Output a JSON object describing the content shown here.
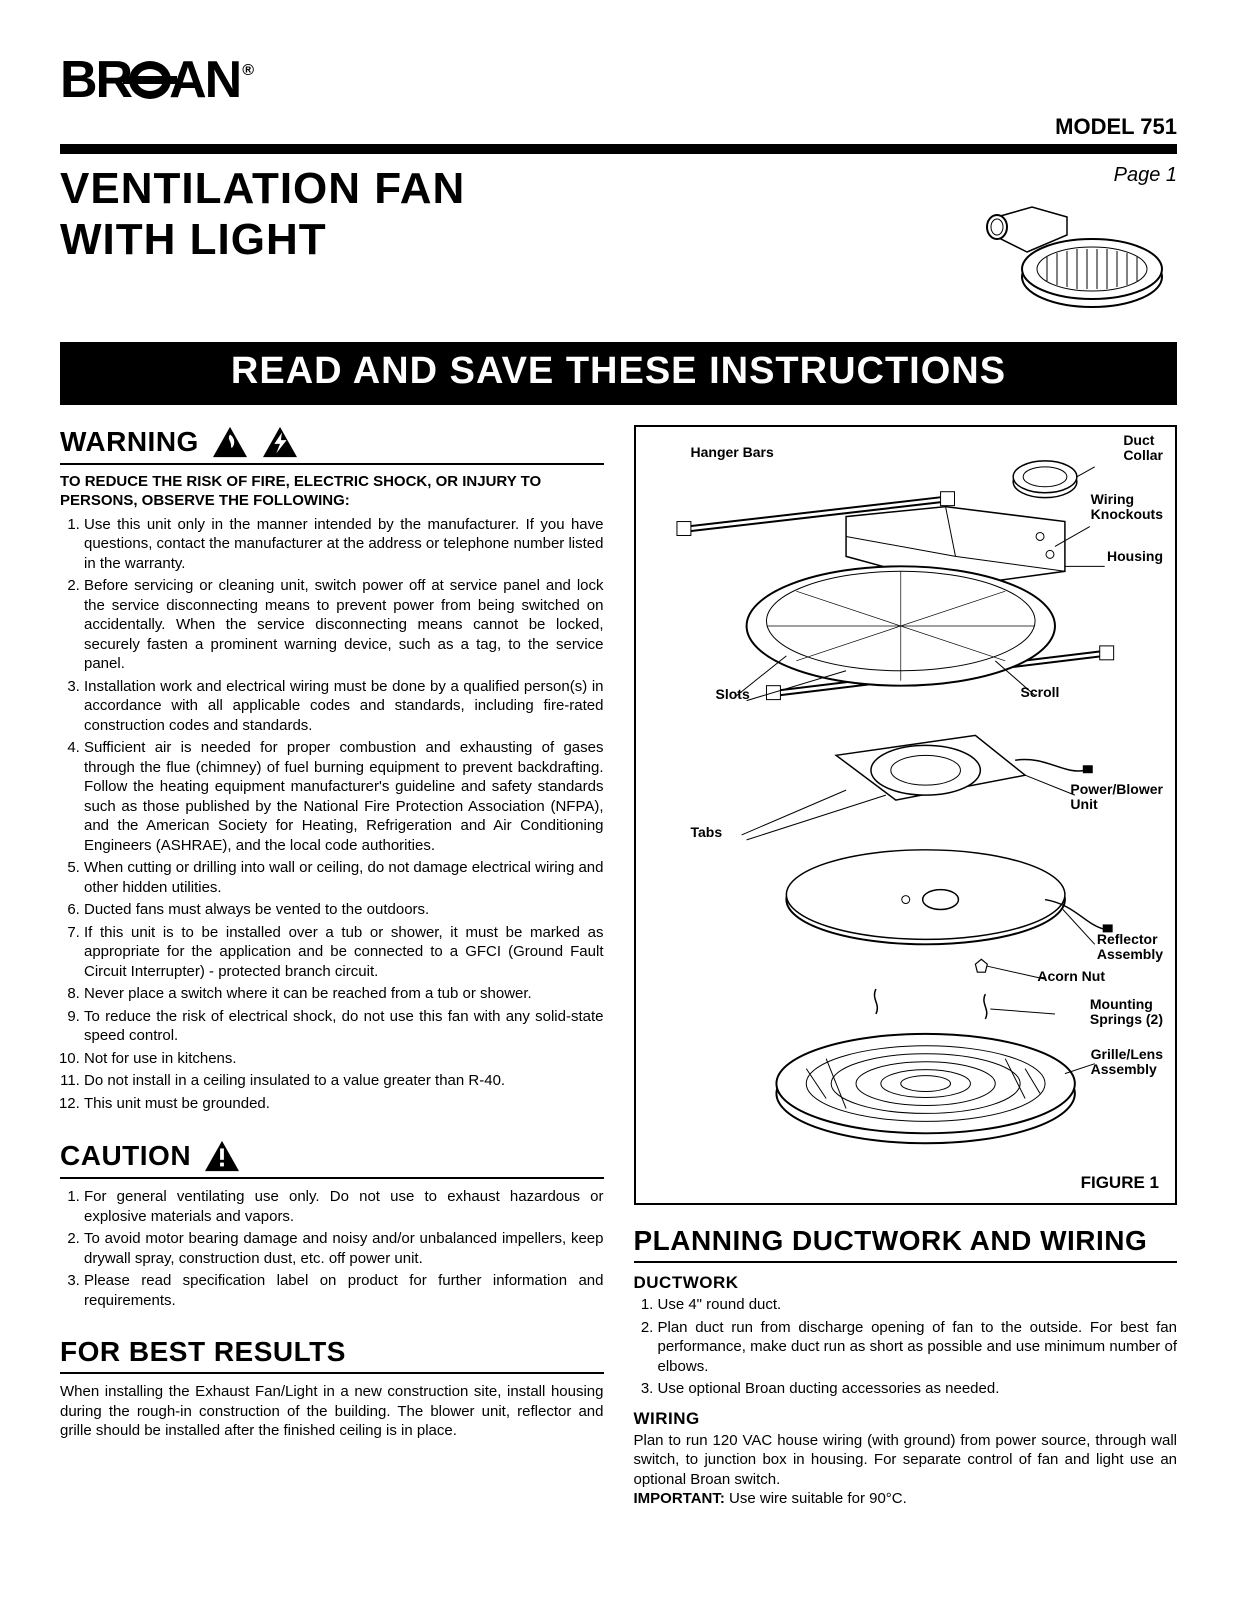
{
  "brand": "BROAN",
  "model_label": "MODEL 751",
  "page_label": "Page 1",
  "title_line1": "VENTILATION FAN",
  "title_line2": "WITH LIGHT",
  "banner": "READ AND SAVE THESE INSTRUCTIONS",
  "warning": {
    "heading": "WARNING",
    "intro": "TO REDUCE THE RISK OF FIRE, ELECTRIC SHOCK, OR INJURY TO PERSONS, OBSERVE THE FOLLOWING:",
    "items": [
      "Use this unit only in the manner intended by the manufacturer. If you have questions, contact the manufacturer at the address or telephone number listed in the warranty.",
      "Before servicing or cleaning unit, switch power off at service panel and lock the service disconnecting means to prevent power from being switched on accidentally. When the service disconnecting means cannot be locked, securely fasten a prominent warning device, such as a tag, to the service panel.",
      "Installation work and electrical wiring must be done by a qualified person(s) in accordance with all applicable codes and standards, including fire-rated construction codes and standards.",
      "Sufficient air is needed for proper combustion and exhausting of gases through the flue (chimney) of fuel burning equipment to prevent backdrafting. Follow the heating equipment manufacturer's guideline and safety standards such as those published by the National Fire Protection Association (NFPA), and the American Society for Heating, Refrigeration and Air Conditioning Engineers (ASHRAE), and the local code authorities.",
      "When cutting or drilling into wall or ceiling, do not damage electrical wiring and other hidden utilities.",
      "Ducted fans must always be vented to the outdoors.",
      "If this unit is to be installed over a tub or shower, it must be marked as appropriate for the application and be connected to a GFCI (Ground Fault Circuit Interrupter) - protected branch circuit.",
      "Never place a switch where it can be reached from a tub or shower.",
      "To reduce the risk of electrical shock, do not use this fan with any solid-state speed control.",
      "Not for use in kitchens.",
      "Do not install in a ceiling insulated to a value greater than R-40.",
      "This unit must be grounded."
    ]
  },
  "caution": {
    "heading": "CAUTION",
    "items": [
      "For general ventilating use only. Do not use to exhaust hazardous or explosive materials and vapors.",
      "To avoid motor bearing damage and noisy and/or unbalanced impellers, keep drywall spray, construction dust, etc. off power unit.",
      "Please read specification label on product for further information and requirements."
    ]
  },
  "best_results": {
    "heading": "FOR BEST RESULTS",
    "body": "When installing the Exhaust Fan/Light in a new construction site, install housing during the rough-in construction of the building. The blower unit, reflector and grille should be installed after the finished ceiling is in place."
  },
  "planning": {
    "heading": "PLANNING DUCTWORK AND WIRING",
    "ductwork_head": "DUCTWORK",
    "ductwork_items": [
      "Use 4\" round duct.",
      "Plan duct run from discharge opening of fan to the outside. For best fan performance, make duct run as short as possible and use minimum number of elbows.",
      "Use optional Broan ducting accessories as needed."
    ],
    "wiring_head": "WIRING",
    "wiring_body": "Plan to run 120 VAC house wiring (with ground) from power source, through wall switch, to junction box in housing. For separate control of fan and light use an optional Broan switch.",
    "wiring_important": "IMPORTANT: ",
    "wiring_important_rest": "Use wire suitable for 90°C."
  },
  "diagram": {
    "labels": {
      "hanger_bars": "Hanger Bars",
      "duct_collar": "Duct\nCollar",
      "wiring_knockouts": "Wiring\nKnockouts",
      "housing": "Housing",
      "slots": "Slots",
      "scroll": "Scroll",
      "power_blower": "Power/Blower\nUnit",
      "tabs": "Tabs",
      "reflector": "Reflector\nAssembly",
      "acorn_nut": "Acorn Nut",
      "mounting_springs": "Mounting\nSprings (2)",
      "grille_lens": "Grille/Lens\nAssembly"
    },
    "figure_caption": "FIGURE 1"
  }
}
